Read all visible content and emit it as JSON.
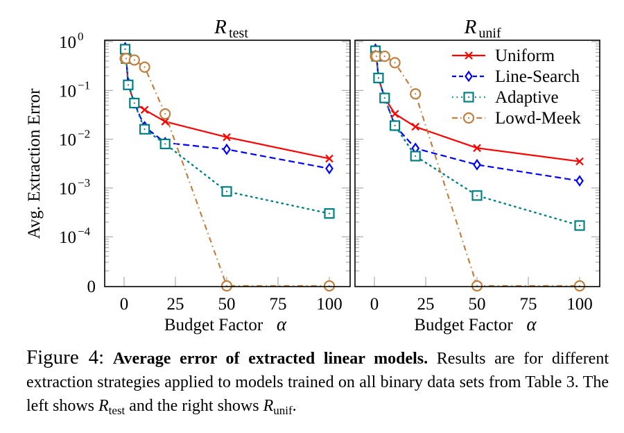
{
  "chart_data": [
    {
      "type": "line",
      "title": "R",
      "title_subscript": "test",
      "xlabel": "Budget Factor α",
      "ylabel": "Avg. Extraction Error",
      "xlim": [
        -6,
        111
      ],
      "x_ticks": [
        0,
        25,
        50,
        75,
        100
      ],
      "y_scale": "log (with zero break)",
      "y_ticks": [
        "10^0",
        "10^-1",
        "10^-2",
        "10^-3",
        "10^-4",
        "0"
      ],
      "y_tick_values": [
        1,
        0.1,
        0.01,
        0.001,
        0.0001,
        0
      ],
      "legend": "none",
      "series": [
        {
          "name": "Uniform",
          "color": "#ff0000",
          "marker": "x",
          "style": "solid",
          "x": [
            0.5,
            1,
            2,
            5,
            10,
            20,
            50,
            100
          ],
          "y": [
            0.65,
            0.45,
            0.13,
            0.055,
            0.04,
            0.023,
            0.011,
            0.004
          ]
        },
        {
          "name": "Line-Search",
          "color": "#0000ff",
          "marker": "diamond",
          "style": "dashed",
          "x": [
            0.5,
            1,
            2,
            5,
            10,
            20,
            50,
            100
          ],
          "y": [
            0.75,
            0.45,
            0.14,
            0.055,
            0.018,
            0.0085,
            0.0062,
            0.0025
          ]
        },
        {
          "name": "Adaptive",
          "color": "#008080",
          "marker": "square",
          "style": "dotted",
          "x": [
            0.5,
            1,
            2,
            5,
            10,
            20,
            50,
            100
          ],
          "y": [
            0.7,
            0.45,
            0.13,
            0.055,
            0.016,
            0.008,
            0.00085,
            0.0003
          ]
        },
        {
          "name": "Lowd-Meek",
          "color": "#bf8040",
          "marker": "circle",
          "style": "dashdot",
          "x": [
            0.5,
            1,
            5,
            10,
            20,
            50,
            100
          ],
          "y": [
            0.45,
            0.45,
            0.42,
            0.3,
            0.033,
            0,
            0
          ]
        }
      ]
    },
    {
      "type": "line",
      "title": "R",
      "title_subscript": "unif",
      "xlabel": "Budget Factor α",
      "ylabel": "",
      "xlim": [
        -6,
        111
      ],
      "x_ticks": [
        0,
        25,
        50,
        75,
        100
      ],
      "y_scale": "log (with zero break)",
      "y_ticks": [],
      "legend": "top-right",
      "series": [
        {
          "name": "Uniform",
          "color": "#ff0000",
          "marker": "x",
          "style": "solid",
          "x": [
            0.5,
            1,
            2,
            5,
            10,
            20,
            50,
            100
          ],
          "y": [
            0.65,
            0.5,
            0.18,
            0.07,
            0.033,
            0.018,
            0.0066,
            0.0035
          ]
        },
        {
          "name": "Line-Search",
          "color": "#0000ff",
          "marker": "diamond",
          "style": "dashed",
          "x": [
            0.5,
            1,
            2,
            5,
            10,
            20,
            50,
            100
          ],
          "y": [
            0.7,
            0.5,
            0.18,
            0.07,
            0.019,
            0.0065,
            0.003,
            0.0014
          ]
        },
        {
          "name": "Adaptive",
          "color": "#008080",
          "marker": "square",
          "style": "dotted",
          "x": [
            0.5,
            1,
            2,
            5,
            10,
            20,
            50,
            100
          ],
          "y": [
            0.65,
            0.5,
            0.18,
            0.07,
            0.019,
            0.0045,
            0.0007,
            0.00017
          ]
        },
        {
          "name": "Lowd-Meek",
          "color": "#bf8040",
          "marker": "circle",
          "style": "dashdot",
          "x": [
            0.5,
            1,
            5,
            10,
            20,
            50,
            100
          ],
          "y": [
            0.5,
            0.5,
            0.5,
            0.37,
            0.085,
            0,
            0
          ]
        }
      ]
    }
  ],
  "caption": {
    "label": "Figure 4:",
    "bold": "Average error of extracted linear models.",
    "text1": " Results are for different extraction strategies applied to models trained on all binary data sets from Table 3. The left shows ",
    "r": "R",
    "sub_test": "test",
    "text2": " and the right shows ",
    "sub_unif": "unif",
    "text3": "."
  }
}
